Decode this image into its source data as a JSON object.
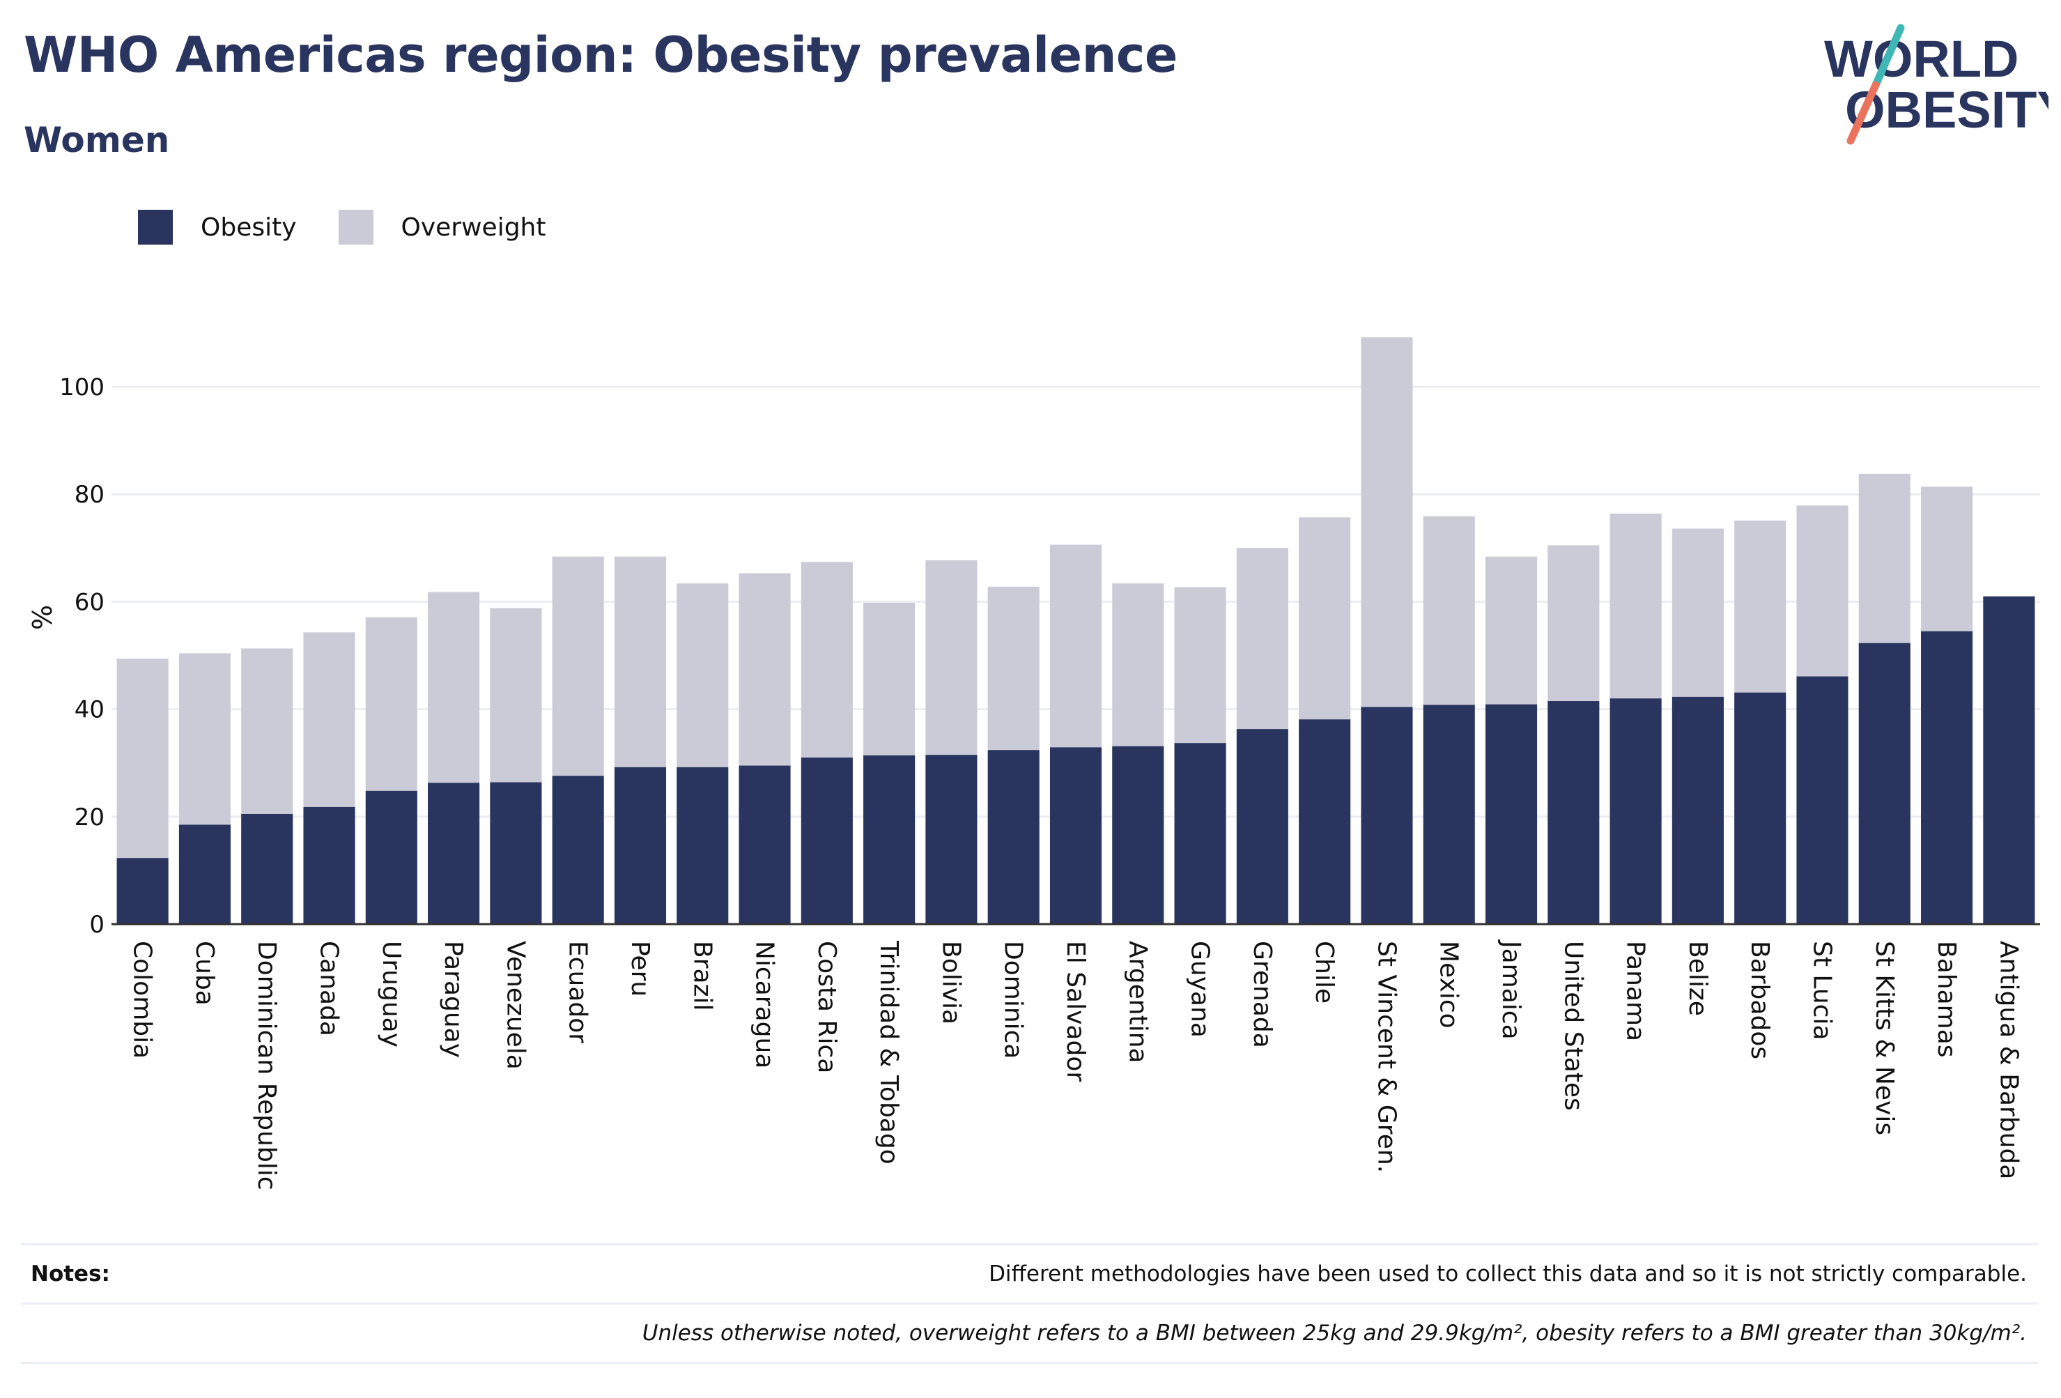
{
  "header": {
    "title": "WHO Americas region: Obesity prevalence",
    "subtitle": "Women"
  },
  "logo": {
    "line1": "WORLD",
    "line2": "OBESITY",
    "text_color": "#29355f",
    "slash_teal": "#3fb8b5",
    "slash_coral": "#e9735c"
  },
  "legend": {
    "items": [
      {
        "label": "Obesity",
        "color": "#29355f"
      },
      {
        "label": "Overweight",
        "color": "#cacbd7"
      }
    ]
  },
  "chart_data": {
    "type": "bar",
    "stacked": true,
    "ylabel": "%",
    "ylim": [
      0,
      110
    ],
    "yticks": [
      0,
      20,
      40,
      60,
      80,
      100
    ],
    "grid": true,
    "legend_position": "top-left",
    "categories": [
      "Colombia",
      "Cuba",
      "Dominican Republic",
      "Canada",
      "Uruguay",
      "Paraguay",
      "Venezuela",
      "Ecuador",
      "Peru",
      "Brazil",
      "Nicaragua",
      "Costa Rica",
      "Trinidad & Tobago",
      "Bolivia",
      "Dominica",
      "El Salvador",
      "Argentina",
      "Guyana",
      "Grenada",
      "Chile",
      "St Vincent & Gren.",
      "Mexico",
      "Jamaica",
      "United States",
      "Panama",
      "Belize",
      "Barbados",
      "St Lucia",
      "St Kitts & Nevis",
      "Bahamas",
      "Antigua & Barbuda"
    ],
    "series": [
      {
        "name": "Obesity",
        "color": "#29355f",
        "values": [
          12.3,
          18.5,
          20.5,
          21.8,
          24.8,
          26.3,
          26.4,
          27.6,
          29.2,
          29.2,
          29.5,
          31.0,
          31.4,
          31.5,
          32.4,
          32.9,
          33.1,
          33.7,
          36.3,
          38.1,
          40.4,
          40.8,
          40.9,
          41.5,
          42.0,
          42.3,
          43.1,
          46.1,
          52.3,
          54.5,
          61.0
        ]
      },
      {
        "name": "Overweight",
        "color": "#cacbd7",
        "values": [
          37.1,
          31.9,
          30.8,
          32.5,
          32.3,
          35.5,
          32.4,
          40.8,
          39.2,
          34.2,
          35.8,
          36.4,
          28.4,
          36.2,
          30.4,
          37.7,
          30.3,
          29.0,
          33.7,
          37.6,
          68.8,
          35.1,
          27.5,
          29.0,
          34.4,
          31.3,
          32.0,
          31.8,
          31.5,
          26.9,
          0
        ]
      }
    ]
  },
  "notes": {
    "label": "Notes:",
    "text1": "Different methodologies have been used to collect this data and so it is not strictly comparable.",
    "text2": "Unless otherwise noted, overweight refers to a BMI between 25kg and 29.9kg/m², obesity refers to a BMI greater than 30kg/m²."
  }
}
